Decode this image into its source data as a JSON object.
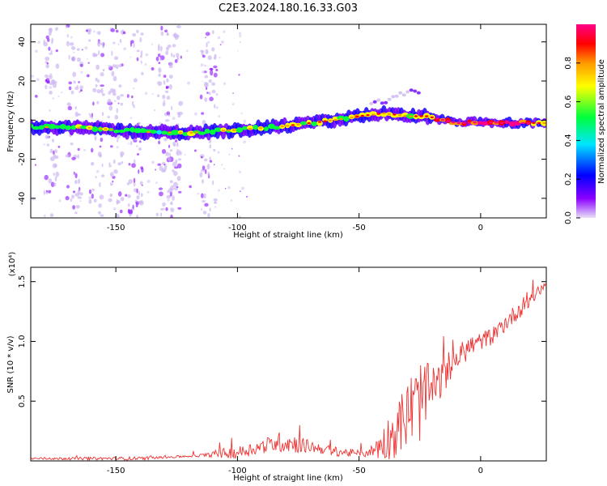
{
  "chart_data": [
    {
      "type": "heatmap",
      "title": "C2E3.2024.180.16.33.G03",
      "xlabel": "Height of straight line (km)",
      "ylabel": "Frequency (Hz)",
      "xlim": [
        -185,
        27
      ],
      "ylim": [
        -50,
        49
      ],
      "xticks": [
        -150,
        -100,
        -50,
        0
      ],
      "yticks": [
        -40,
        -20,
        0,
        20,
        40
      ],
      "colorbar": {
        "label": "Normalized spectral amplitude",
        "range": [
          0.0,
          1.0
        ],
        "ticks": [
          "0.0",
          "0.2",
          "0.4",
          "0.6",
          "0.8"
        ],
        "colormap": [
          "#e8e0f8",
          "#8a00ff",
          "#0000ff",
          "#00e5ff",
          "#00ff3c",
          "#ffff00",
          "#ff9900",
          "#ff0000",
          "#ff0088"
        ]
      },
      "ridge": {
        "x": [
          -185,
          -160,
          -140,
          -120,
          -100,
          -80,
          -60,
          -50,
          -40,
          -30,
          -22,
          -15,
          -10,
          -5,
          0,
          10,
          20,
          27
        ],
        "y": [
          -3.5,
          -4,
          -6,
          -6.5,
          -5,
          -3,
          0,
          2,
          3.5,
          2,
          2,
          0,
          -1.5,
          -1.5,
          -1,
          -1.5,
          -1.5,
          -1.5
        ],
        "peak_amplitude": [
          0.45,
          0.5,
          0.45,
          0.5,
          0.5,
          0.55,
          0.6,
          0.65,
          0.6,
          0.6,
          0.65,
          0.8,
          0.9,
          0.95,
          0.9,
          0.95,
          0.9,
          0.6
        ]
      },
      "secondary_branch": {
        "x": [
          -45,
          -40,
          -35,
          -30,
          -25
        ],
        "y": [
          8,
          10,
          12,
          14,
          15
        ]
      },
      "noise_columns_x": [
        -177,
        -167,
        -158,
        -150,
        -142,
        -130,
        -126,
        -112
      ]
    },
    {
      "type": "line",
      "title": "",
      "xlabel": "Height of straight line (km)",
      "ylabel": "SNR (10 * v/v)",
      "y_multiplier": "(x10⁴)",
      "xlim": [
        -185,
        27
      ],
      "ylim": [
        0,
        1.62
      ],
      "xticks": [
        -150,
        -100,
        -50,
        0
      ],
      "yticks": [
        0.5,
        1.0,
        1.5
      ],
      "color": "#ee3333",
      "envelope": {
        "x": [
          -185,
          -140,
          -130,
          -120,
          -112,
          -108,
          -100,
          -90,
          -82,
          -75,
          -70,
          -60,
          -50,
          -45,
          -40,
          -35,
          -30,
          -25,
          -20,
          -15,
          -10,
          -5,
          0,
          5,
          10,
          15,
          20,
          27
        ],
        "base": [
          0.02,
          0.02,
          0.03,
          0.04,
          0.05,
          0.06,
          0.07,
          0.12,
          0.16,
          0.14,
          0.12,
          0.08,
          0.06,
          0.08,
          0.15,
          0.25,
          0.4,
          0.5,
          0.6,
          0.7,
          0.85,
          0.95,
          1.0,
          1.05,
          1.15,
          1.25,
          1.35,
          1.48
        ],
        "spread": [
          0.02,
          0.03,
          0.02,
          0.02,
          0.03,
          0.08,
          0.1,
          0.12,
          0.18,
          0.15,
          0.1,
          0.08,
          0.06,
          0.1,
          0.3,
          0.45,
          0.6,
          0.7,
          0.4,
          0.25,
          0.2,
          0.2,
          0.15,
          0.15,
          0.15,
          0.15,
          0.15,
          0.08
        ]
      }
    }
  ]
}
